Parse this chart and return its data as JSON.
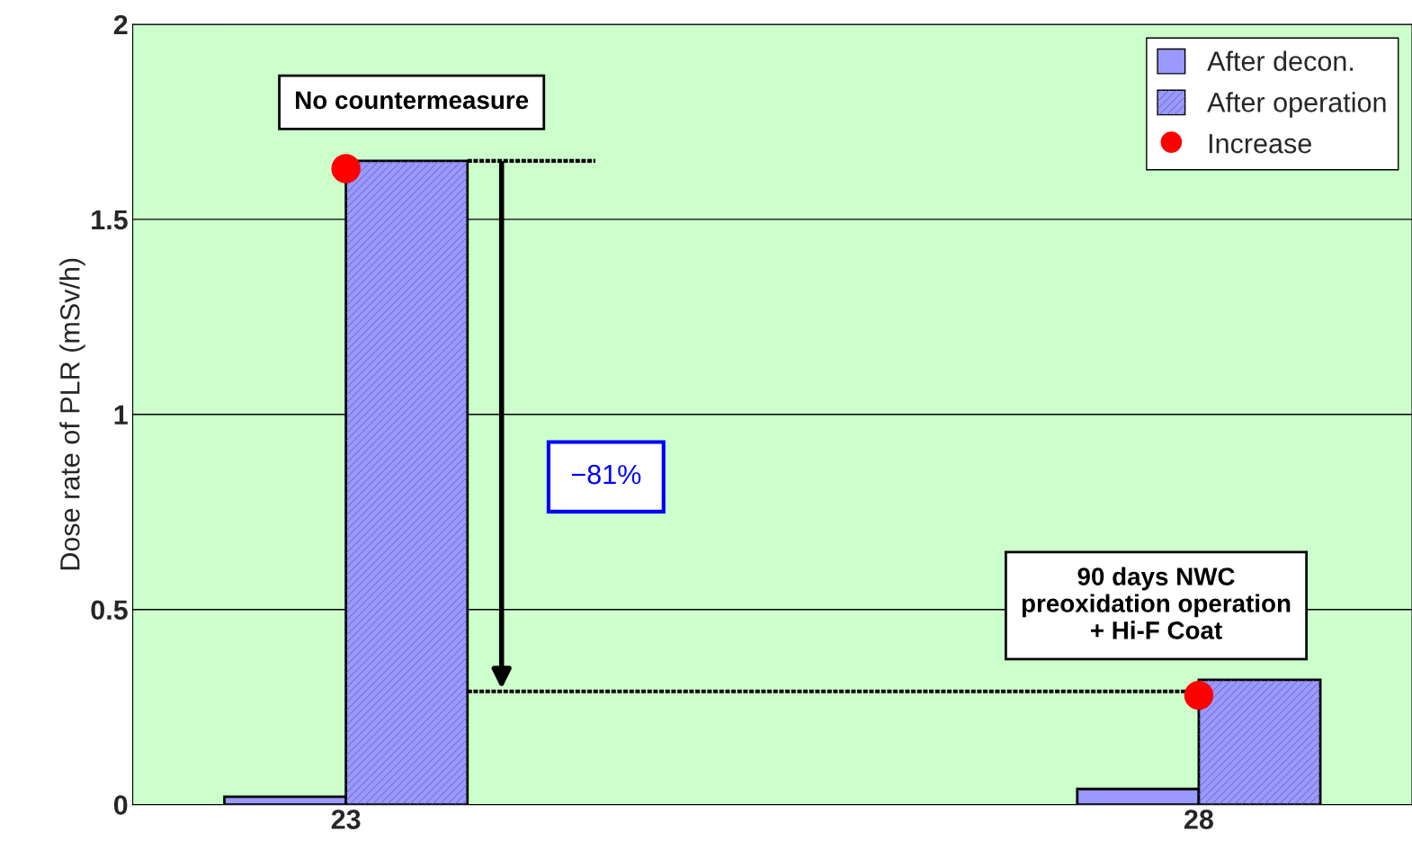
{
  "chart_data": {
    "type": "bar",
    "ylabel": "Dose rate of PLR (mSv/h)",
    "categories": [
      "23",
      null,
      "28"
    ],
    "series": [
      {
        "name": "After decon.",
        "color": "#9999ff",
        "values": [
          0.02,
          null,
          0.04
        ]
      },
      {
        "name": "After operation",
        "color": "#9999ff",
        "values": [
          1.65,
          null,
          0.32
        ]
      },
      {
        "name": "Increase",
        "type": "scatter",
        "color": "#ff0000",
        "x": [
          "23",
          "28"
        ],
        "values": [
          1.63,
          0.28
        ]
      }
    ],
    "annotations": [
      "No countermeasure",
      "−81%",
      "90 days NWC\npreoxidation operation\n+ Hi-F Coat"
    ],
    "ref_lines": [
      {
        "axis": "y",
        "value": 0.29,
        "color": "#000000",
        "line_style": "dotted"
      }
    ],
    "ylim": [
      0,
      2
    ],
    "yticks": [
      0,
      0.5,
      1,
      1.5,
      2
    ],
    "grid": "y",
    "legend": "top right"
  }
}
